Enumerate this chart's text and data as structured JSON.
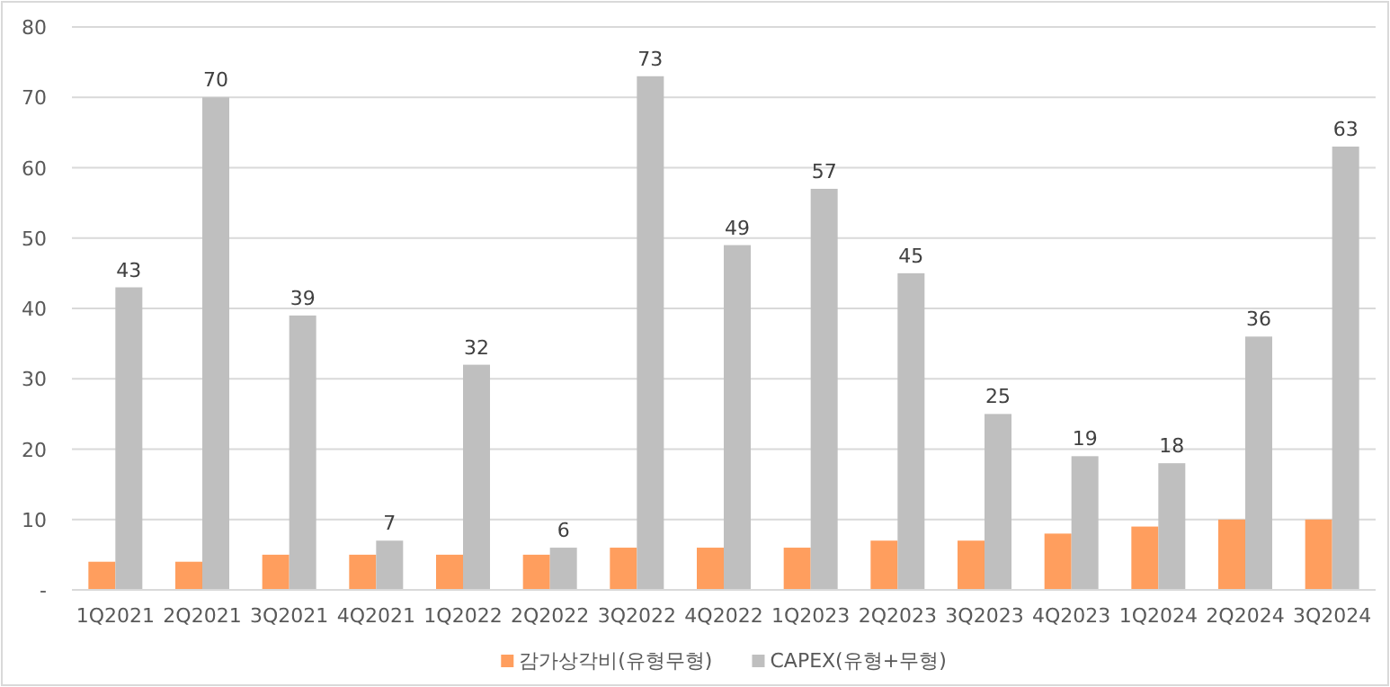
{
  "chart_data": {
    "type": "bar",
    "categories": [
      "1Q2021",
      "2Q2021",
      "3Q2021",
      "4Q2021",
      "1Q2022",
      "2Q2022",
      "3Q2022",
      "4Q2022",
      "1Q2023",
      "2Q2023",
      "3Q2023",
      "4Q2023",
      "1Q2024",
      "2Q2024",
      "3Q2024"
    ],
    "series": [
      {
        "name": "감가상각비(유형무형)",
        "color": "#ff9e5e",
        "values": [
          4,
          4,
          5,
          5,
          5,
          5,
          6,
          6,
          6,
          7,
          7,
          8,
          9,
          10,
          10
        ]
      },
      {
        "name": "CAPEX(유형+무형)",
        "color": "#bfbfbf",
        "values": [
          43,
          70,
          39,
          7,
          32,
          6,
          73,
          49,
          57,
          45,
          25,
          19,
          18,
          36,
          63
        ],
        "value_labels": [
          "43",
          "70",
          "39",
          "7",
          "32",
          "6",
          "73",
          "49",
          "57",
          "45",
          "25",
          "19",
          "18",
          "36",
          "63"
        ]
      }
    ],
    "ylim": [
      0,
      80
    ],
    "yticks": [
      {
        "value": 0,
        "label": "-"
      },
      10,
      20,
      30,
      40,
      50,
      60,
      70,
      80
    ],
    "grid": "y",
    "legend": "bottom"
  }
}
